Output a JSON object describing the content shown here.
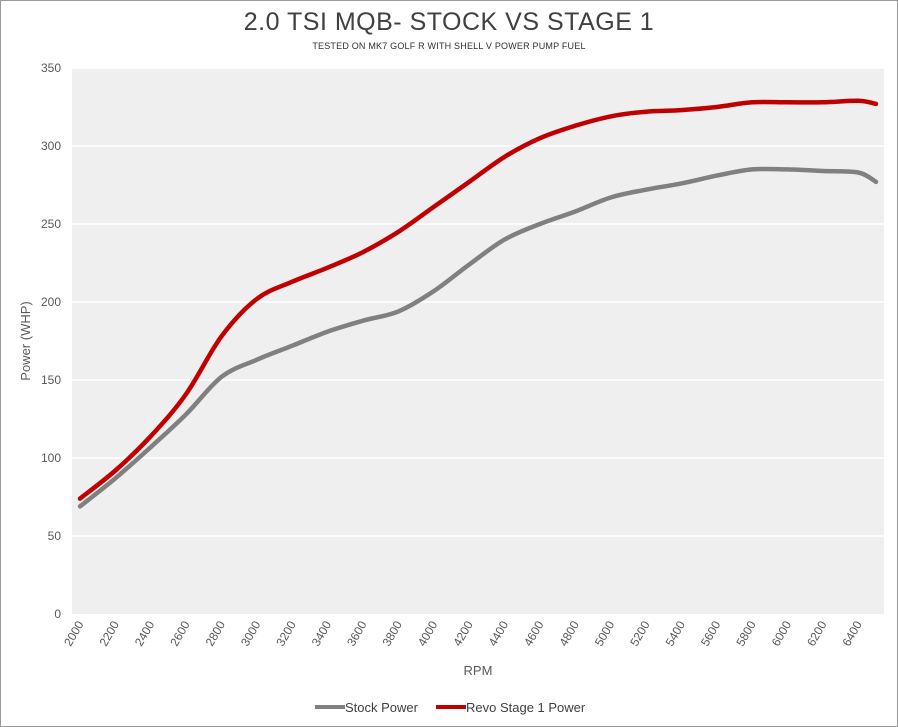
{
  "chart_data": {
    "type": "line",
    "title": "2.0 TSI MQB- STOCK VS STAGE 1",
    "subtitle": "TESTED ON MK7 GOLF R WITH SHELL V POWER PUMP FUEL",
    "xlabel": "RPM",
    "ylabel": "Power (WHP)",
    "xlim": [
      2000,
      6500
    ],
    "ylim": [
      0,
      350
    ],
    "y_ticks": [
      0,
      50,
      100,
      150,
      200,
      250,
      300,
      350
    ],
    "x_ticks": [
      2000,
      2200,
      2400,
      2600,
      2800,
      3000,
      3200,
      3400,
      3600,
      3800,
      4000,
      4200,
      4400,
      4600,
      4800,
      5000,
      5200,
      5400,
      5600,
      5800,
      6000,
      6200,
      6400
    ],
    "grid": "horizontal",
    "legend_position": "bottom",
    "x": [
      2000,
      2200,
      2400,
      2600,
      2800,
      3000,
      3200,
      3400,
      3600,
      3800,
      4000,
      4200,
      4400,
      4600,
      4800,
      5000,
      5200,
      5400,
      5600,
      5800,
      6000,
      6200,
      6400,
      6500
    ],
    "series": [
      {
        "name": "Stock Power",
        "color": "#808080",
        "values": [
          69,
          87,
          107,
          128,
          152,
          163,
          172,
          181,
          188,
          194,
          207,
          224,
          240,
          250,
          258,
          267,
          272,
          276,
          281,
          285,
          285,
          284,
          283,
          277
        ]
      },
      {
        "name": "Revo Stage 1 Power",
        "color": "#c00000",
        "values": [
          74,
          92,
          114,
          141,
          178,
          202,
          213,
          222,
          232,
          245,
          261,
          277,
          293,
          305,
          313,
          319,
          322,
          323,
          325,
          328,
          328,
          328,
          329,
          327
        ]
      }
    ]
  }
}
